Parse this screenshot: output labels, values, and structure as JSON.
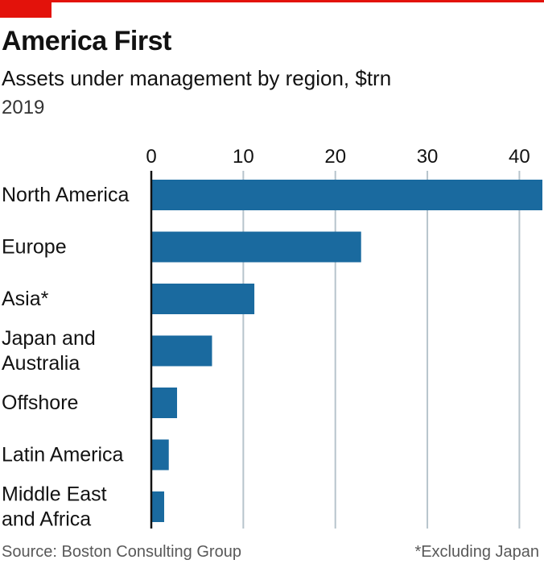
{
  "header": {
    "title": "America First",
    "subtitle": "Assets under management by region, $trn",
    "year": "2019"
  },
  "footer": {
    "source": "Source: Boston Consulting Group",
    "note": "*Excluding Japan"
  },
  "colors": {
    "bar": "#1a6a9f",
    "grid": "#b7c4cc",
    "accent": "#e3120b",
    "axis": "#121212"
  },
  "chart_data": {
    "type": "bar",
    "orientation": "horizontal",
    "categories": [
      [
        "North America"
      ],
      [
        "Europe"
      ],
      [
        "Asia*"
      ],
      [
        "Japan and",
        "Australia"
      ],
      [
        "Offshore"
      ],
      [
        "Latin America"
      ],
      [
        "Middle East",
        "and Africa"
      ]
    ],
    "values": [
      42.5,
      22.8,
      11.2,
      6.6,
      2.8,
      1.9,
      1.4
    ],
    "xlim": [
      0,
      42.5
    ],
    "xticks": [
      0,
      10,
      20,
      30,
      40
    ],
    "grid": true,
    "xaxis_position": "top"
  }
}
